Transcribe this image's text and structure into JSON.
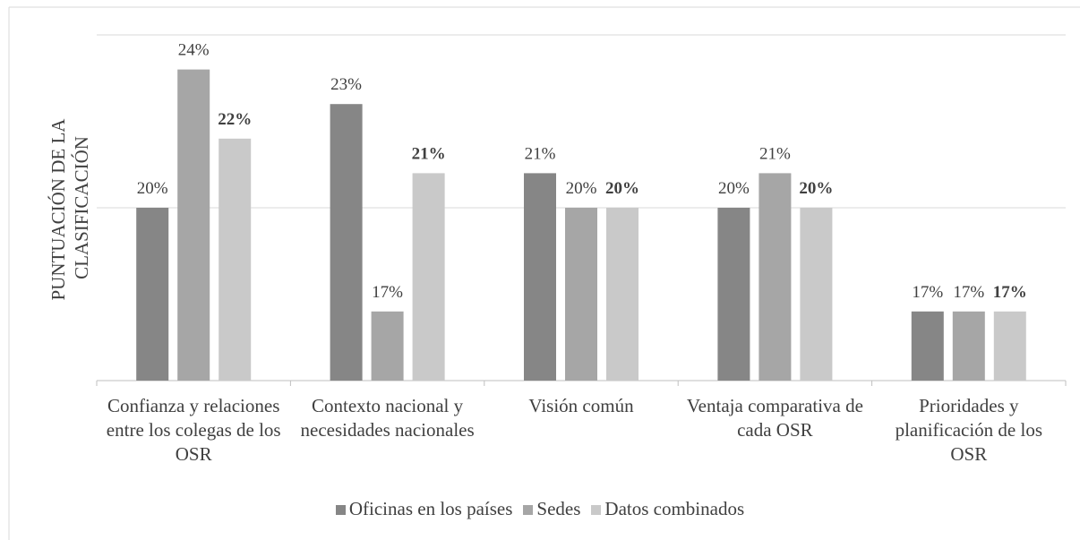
{
  "chart_data": {
    "type": "bar",
    "y_label": [
      "PUNTUACIÓN DE LA",
      "CLASIFICACIÓN"
    ],
    "categories": [
      "Confianza y relaciones entre los colegas de los OSR",
      "Contexto nacional y necesidades nacionales",
      "Visión común",
      "Ventaja comparativa de cada OSR",
      "Prioridades y planificación de los OSR"
    ],
    "series": [
      {
        "name": "Oficinas en los países",
        "color": "#868686",
        "values": [
          20,
          23,
          21,
          20,
          17
        ],
        "value_labels": [
          "20%",
          "23%",
          "21%",
          "20%",
          "17%"
        ],
        "bold_labels": false
      },
      {
        "name": "Sedes",
        "color": "#a6a6a6",
        "values": [
          24,
          17,
          20,
          21,
          17
        ],
        "value_labels": [
          "24%",
          "17%",
          "20%",
          "21%",
          "17%"
        ],
        "bold_labels": false
      },
      {
        "name": "Datos combinados",
        "color": "#c9c9c9",
        "values": [
          22,
          21,
          20,
          20,
          17
        ],
        "value_labels": [
          "22%",
          "21%",
          "20%",
          "20%",
          "17%"
        ],
        "bold_labels": true
      }
    ],
    "ylim": [
      15,
      25
    ],
    "yticks": [
      15,
      20,
      25
    ],
    "grid": true
  }
}
